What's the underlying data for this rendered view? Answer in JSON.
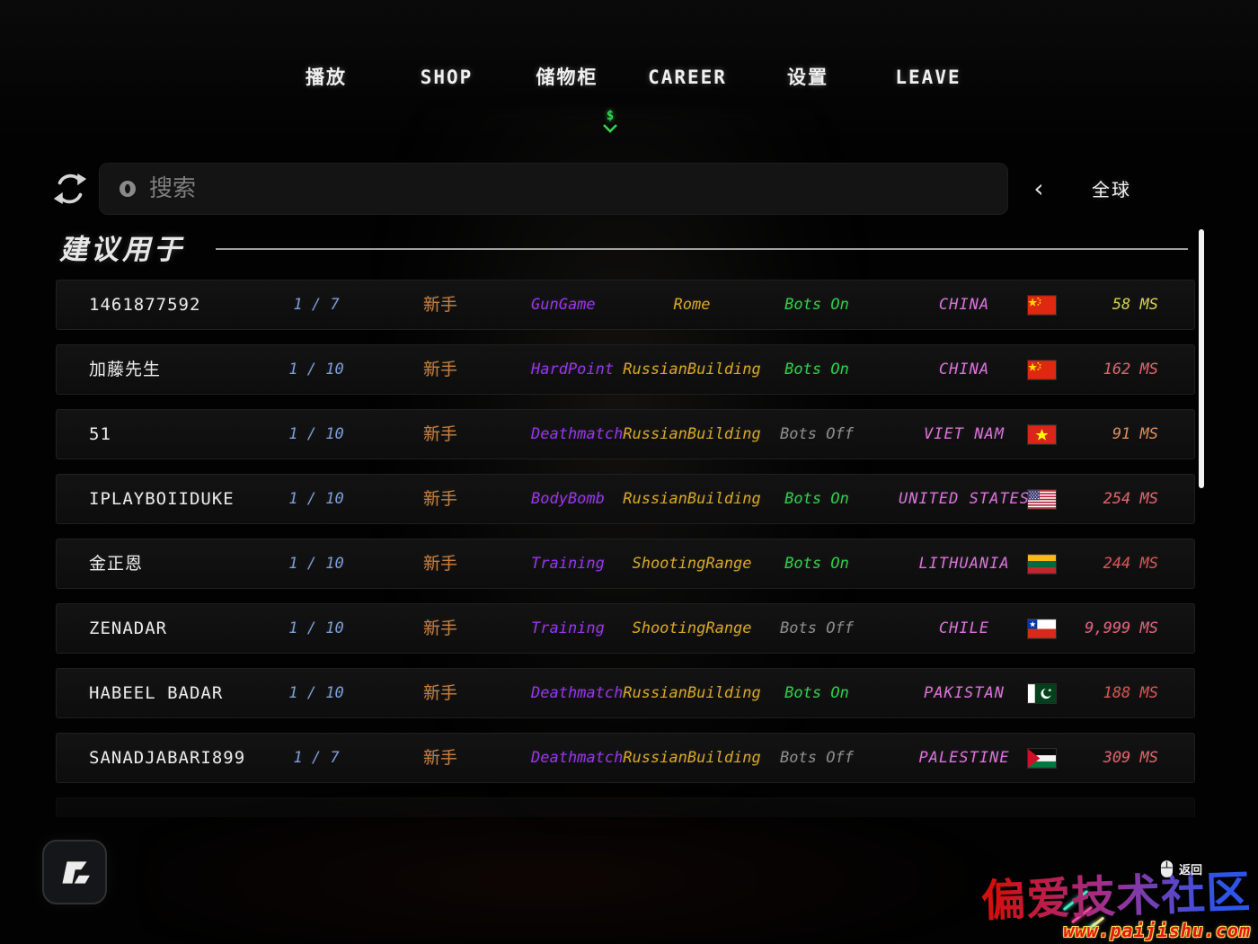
{
  "nav": {
    "items": [
      {
        "id": "play",
        "label": "播放"
      },
      {
        "id": "shop",
        "label": "SHOP"
      },
      {
        "id": "locker",
        "label": "储物柜"
      },
      {
        "id": "career",
        "label": "CAREER"
      },
      {
        "id": "settings",
        "label": "设置"
      },
      {
        "id": "leave",
        "label": "LEAVE"
      }
    ]
  },
  "drop_indicator": {
    "glyph": "$"
  },
  "search": {
    "placeholder": "搜索"
  },
  "region": {
    "chevron": "‹",
    "label": "全球"
  },
  "section": {
    "title": "建议用于"
  },
  "colors": {
    "players": "#7d9fd8",
    "difficulty": "#c8803f",
    "mode": "#9a35f0",
    "map": "#d9a827",
    "bots_on": "#2ed24a",
    "bots_off": "#8f8f8f",
    "country": "#dc72dc"
  },
  "server_list": {
    "rows": [
      {
        "name": "1461877592",
        "players": "1 / 7",
        "difficulty": "新手",
        "mode": "GunGame",
        "map": "Rome",
        "bots": "Bots On",
        "bots_on": true,
        "country": "CHINA",
        "flag": "cn",
        "ping": "58 MS",
        "ping_color": "#d6d44e"
      },
      {
        "name": "加藤先生",
        "players": "1 / 10",
        "difficulty": "新手",
        "mode": "HardPoint",
        "map": "RussianBuilding",
        "bots": "Bots On",
        "bots_on": true,
        "country": "CHINA",
        "flag": "cn",
        "ping": "162 MS",
        "ping_color": "#e4636d"
      },
      {
        "name": "51",
        "players": "1 / 10",
        "difficulty": "新手",
        "mode": "Deathmatch",
        "map": "RussianBuilding",
        "bots": "Bots Off",
        "bots_on": false,
        "country": "VIET NAM",
        "flag": "vn",
        "ping": "91 MS",
        "ping_color": "#dc8e5c"
      },
      {
        "name": "IPLAYBOIIDUKE",
        "players": "1 / 10",
        "difficulty": "新手",
        "mode": "BodyBomb",
        "map": "RussianBuilding",
        "bots": "Bots On",
        "bots_on": true,
        "country": "UNITED STATES",
        "flag": "us",
        "ping": "254 MS",
        "ping_color": "#e4636d"
      },
      {
        "name": "金正恩",
        "players": "1 / 10",
        "difficulty": "新手",
        "mode": "Training",
        "map": "ShootingRange",
        "bots": "Bots On",
        "bots_on": true,
        "country": "LITHUANIA",
        "flag": "lt",
        "ping": "244 MS",
        "ping_color": "#df5353"
      },
      {
        "name": "ZENADAR",
        "players": "1 / 10",
        "difficulty": "新手",
        "mode": "Training",
        "map": "ShootingRange",
        "bots": "Bots Off",
        "bots_on": false,
        "country": "CHILE",
        "flag": "cl",
        "ping": "9,999 MS",
        "ping_color": "#e4637d"
      },
      {
        "name": "HABEEL BADAR",
        "players": "1 / 10",
        "difficulty": "新手",
        "mode": "Deathmatch",
        "map": "RussianBuilding",
        "bots": "Bots On",
        "bots_on": true,
        "country": "PAKISTAN",
        "flag": "pk",
        "ping": "188 MS",
        "ping_color": "#df5353"
      },
      {
        "name": "SANADJABARI899",
        "players": "1 / 7",
        "difficulty": "新手",
        "mode": "Deathmatch",
        "map": "RussianBuilding",
        "bots": "Bots Off",
        "bots_on": false,
        "country": "PALESTINE",
        "flag": "ps",
        "ping": "309 MS",
        "ping_color": "#e4636d"
      }
    ]
  },
  "footer": {
    "back_label": "返回"
  },
  "watermark": {
    "title": "偏爱技术社区",
    "url": "www.paijishu.com"
  }
}
